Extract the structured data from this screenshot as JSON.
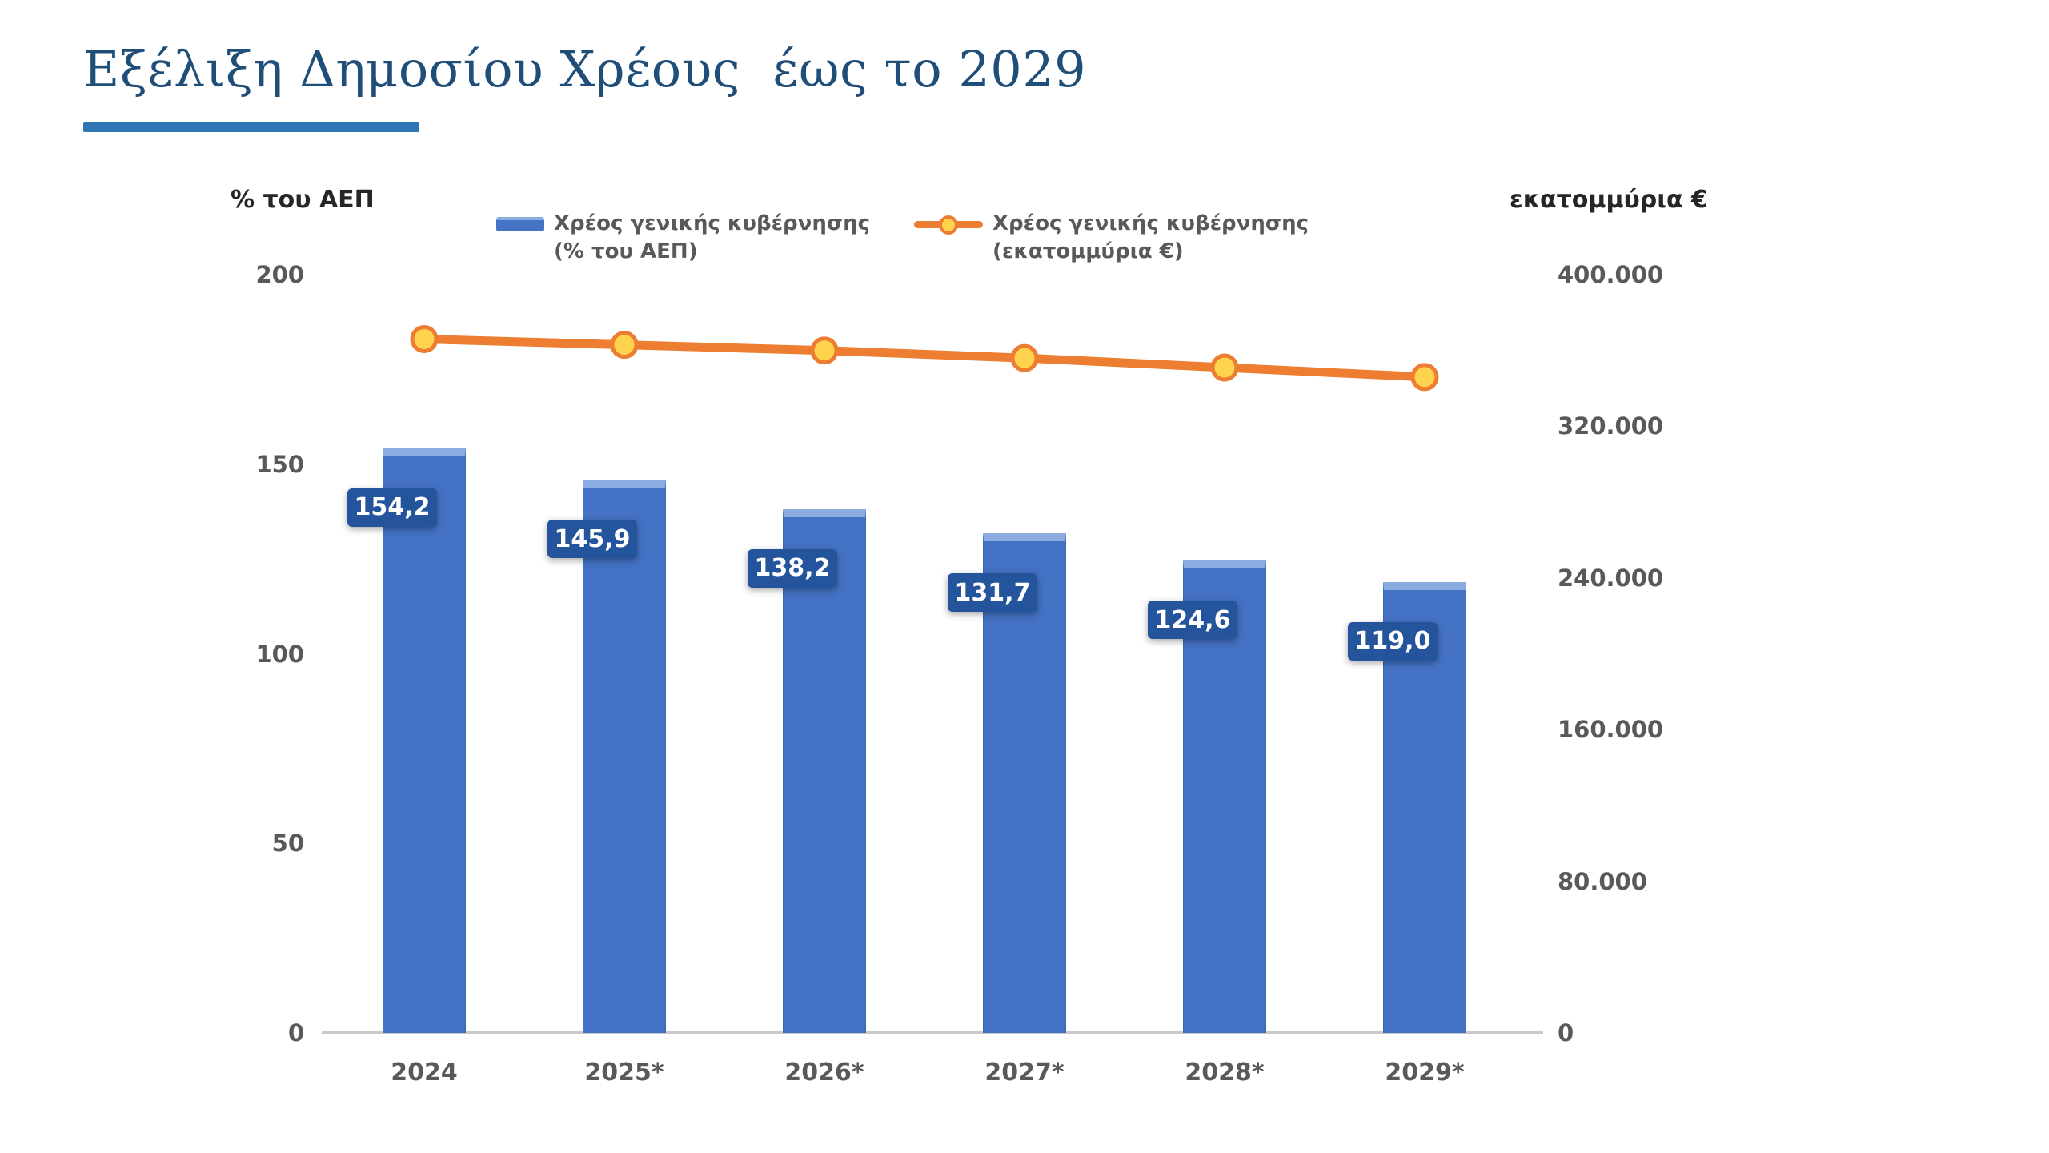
{
  "page": {
    "title": "Εξέλιξη Δημοσίου Χρέους  έως το 2029"
  },
  "colors": {
    "title": "#1F4E79",
    "underline": "#2E75B6",
    "bar": "#4472C4",
    "bar_top": "#8AACE0",
    "label_bg": "#24549C",
    "line": "#ED7D31",
    "marker": "#FFD34D",
    "tick_text": "#595959",
    "axis_line": "#C9C9C9"
  },
  "chart_data": {
    "type": "bar+line",
    "title": "Εξέλιξη Δημοσίου Χρέους  έως το 2029",
    "categories": [
      "2024",
      "2025*",
      "2026*",
      "2027*",
      "2028*",
      "2029*"
    ],
    "series": [
      {
        "name": "Χρέος γενικής κυβέρνησης (% του ΑΕΠ)",
        "type": "bar",
        "axis": "left",
        "values": [
          154.2,
          145.9,
          138.2,
          131.7,
          124.6,
          119.0
        ],
        "labels": [
          "154,2",
          "145,9",
          "138,2",
          "131,7",
          "124,6",
          "119,0"
        ]
      },
      {
        "name": "Χρέος γενικής κυβέρνησης (εκατομμύρια €)",
        "type": "line",
        "axis": "right",
        "values": [
          366000,
          363000,
          360000,
          356000,
          351000,
          346000
        ],
        "note": "values estimated from axis position; no data labels shown"
      }
    ],
    "axes": {
      "left": {
        "title": "% του ΑΕΠ",
        "min": 0,
        "max": 200,
        "ticks": [
          "200",
          "150",
          "100",
          "50",
          "0"
        ]
      },
      "right": {
        "title": "εκατομμύρια €",
        "min": 0,
        "max": 400000,
        "ticks": [
          "400.000",
          "320.000",
          "240.000",
          "160.000",
          "80.000",
          "0"
        ]
      }
    },
    "legend": [
      {
        "swatch": "bar",
        "lines": [
          "Χρέος γενικής κυβέρνησης",
          "(% του ΑΕΠ)"
        ]
      },
      {
        "swatch": "line",
        "lines": [
          "Χρέος γενικής κυβέρνησης",
          "(εκατομμύρια €)"
        ]
      }
    ],
    "grid": false,
    "legend_position": "top"
  }
}
